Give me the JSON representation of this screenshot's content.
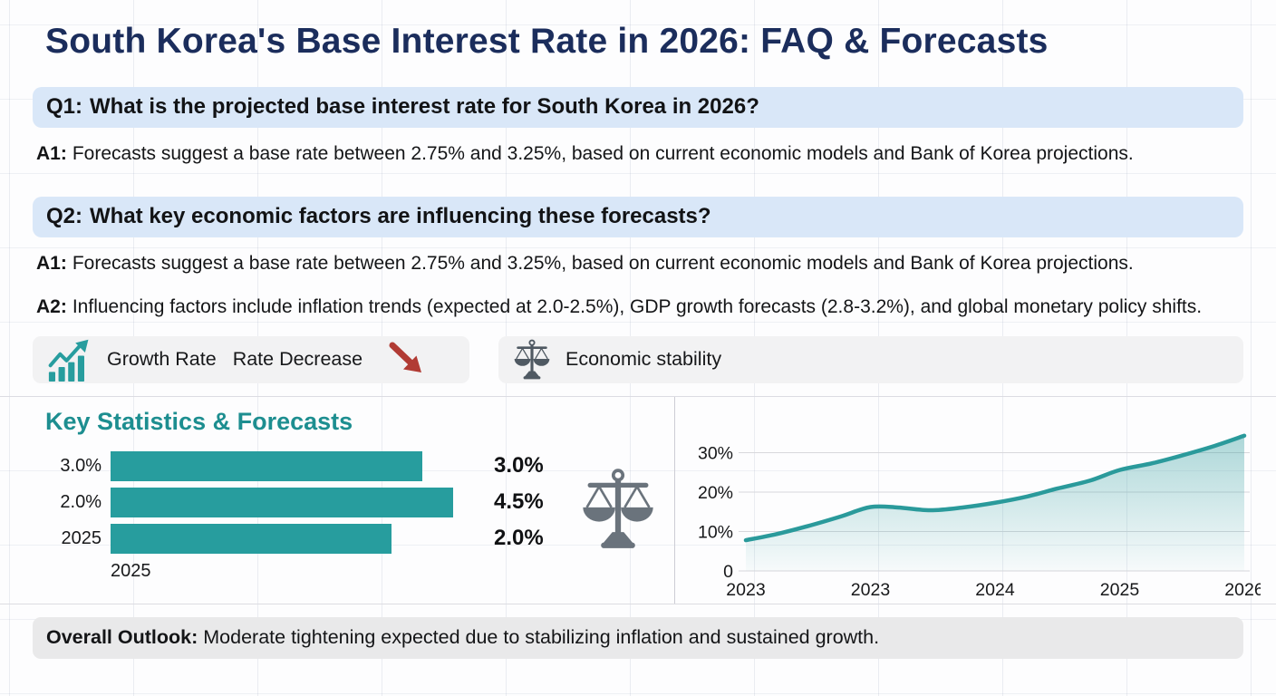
{
  "page": {
    "title": "South Korea's Base Interest Rate in 2026: FAQ & Forecasts"
  },
  "faq": {
    "q1": {
      "label": "Q1:",
      "text": "What is the projected base interest rate for South Korea in 2026?"
    },
    "q1_answers": [
      {
        "label": "A1:",
        "text": "Forecasts suggest a base rate between 2.75% and 3.25%, based on current economic models and Bank of Korea projections."
      }
    ],
    "q2": {
      "label": "Q2:",
      "text": "What key economic factors are influencing these forecasts?"
    },
    "q2_answers": [
      {
        "label": "A1:",
        "text": "Forecasts suggest a base rate between 2.75% and 3.25%, based on current economic models and Bank of Korea projections."
      },
      {
        "label": "A2:",
        "text": "Influencing factors include inflation trends (expected at 2.0-2.5%), GDP growth forecasts (2.8-3.2%), and global monetary policy shifts."
      }
    ]
  },
  "badges": {
    "growth": {
      "icon": "growth-chart-icon",
      "labels": [
        "Growth Rate",
        "Rate Decrease"
      ],
      "arrow_icon": "arrow-down-right-icon",
      "arrow_color": "#b13b34"
    },
    "stability": {
      "icon": "balance-scale-icon",
      "label": "Economic stability"
    }
  },
  "stats": {
    "heading": "Key Statistics & Forecasts",
    "x_axis_label": "2025"
  },
  "outlook": {
    "label": "Overall Outlook:",
    "text": "Moderate tightening expected due to stabilizing inflation and sustained growth."
  },
  "colors": {
    "accent_teal": "#279d9e",
    "heading_teal": "#1d8e90",
    "title_navy": "#1b2d5c",
    "question_banner_blue": "#d9e7f8",
    "badge_gray": "#f2f2f3",
    "outlook_gray": "#e9e9ea",
    "decline_red": "#b13b34",
    "icon_gray": "#6a737c"
  },
  "chart_data": [
    {
      "type": "bar",
      "orientation": "horizontal",
      "title": "Key Statistics & Forecasts",
      "categories": [
        "3.0%",
        "2.0%",
        "2025"
      ],
      "values": [
        3.0,
        4.5,
        2.0
      ],
      "value_labels": [
        "3.0%",
        "4.5%",
        "2.0%"
      ],
      "bar_length_fracs": [
        0.91,
        1.0,
        0.82
      ],
      "xlabel": "2025",
      "bar_color": "#279d9e",
      "grid": false,
      "legend": false
    },
    {
      "type": "area",
      "title": "",
      "x_tick_labels": [
        "2023",
        "2023",
        "2024",
        "2025",
        "2026"
      ],
      "y_ticks": [
        {
          "value": 0,
          "label": "0"
        },
        {
          "value": 10,
          "label": "10%"
        },
        {
          "value": 20,
          "label": "20%"
        },
        {
          "value": 30,
          "label": "30%"
        }
      ],
      "ylim": [
        0,
        38
      ],
      "grid": true,
      "legend": false,
      "line_color": "#2a9a9b",
      "fill": "teal-vertical-gradient",
      "series": [
        {
          "name": "rate-trend",
          "x_as_axis_fraction": true,
          "points": [
            [
              0.0,
              7.8
            ],
            [
              0.06,
              9.3
            ],
            [
              0.125,
              11.4
            ],
            [
              0.19,
              13.8
            ],
            [
              0.25,
              16.2
            ],
            [
              0.305,
              16.1
            ],
            [
              0.37,
              15.4
            ],
            [
              0.435,
              16.1
            ],
            [
              0.5,
              17.3
            ],
            [
              0.565,
              18.9
            ],
            [
              0.625,
              20.9
            ],
            [
              0.69,
              22.9
            ],
            [
              0.75,
              25.6
            ],
            [
              0.815,
              27.3
            ],
            [
              0.875,
              29.3
            ],
            [
              0.94,
              31.7
            ],
            [
              1.0,
              34.3
            ]
          ]
        }
      ]
    }
  ]
}
